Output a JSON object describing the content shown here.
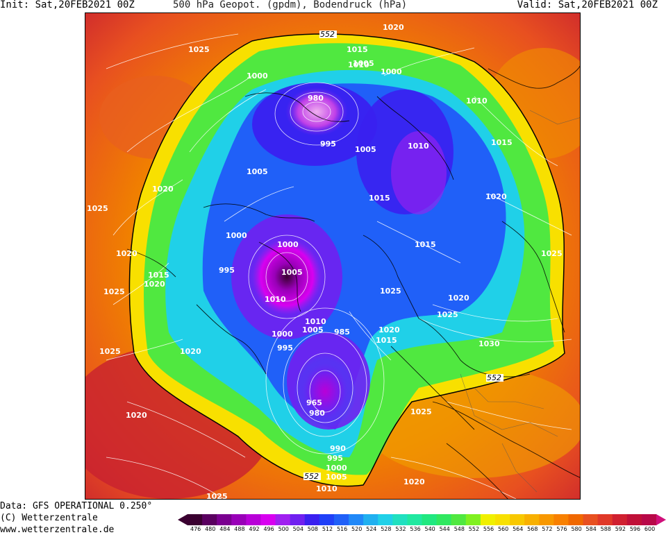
{
  "header": {
    "init": "Init: Sat,20FEB2021 00Z",
    "title": "500 hPa Geopot. (gpdm), Bodendruck (hPa)",
    "valid": "Valid: Sat,20FEB2021 00Z"
  },
  "footer": {
    "data_line": "Data: GFS OPERATIONAL 0.250°",
    "copyright": "(C) Wetterzentrale",
    "url": "www.wetterzentrale.de"
  },
  "colorbar": {
    "labels": [
      "476",
      "480",
      "484",
      "488",
      "492",
      "496",
      "500",
      "504",
      "508",
      "512",
      "516",
      "520",
      "524",
      "528",
      "532",
      "536",
      "540",
      "544",
      "548",
      "552",
      "556",
      "560",
      "564",
      "568",
      "572",
      "576",
      "580",
      "584",
      "588",
      "592",
      "596",
      "600"
    ],
    "colors": [
      "#3a0030",
      "#5a0060",
      "#7a0090",
      "#9900b8",
      "#b800d8",
      "#d800f0",
      "#a020f0",
      "#7020f0",
      "#3a20f0",
      "#2040f8",
      "#2060f8",
      "#2088f8",
      "#20b0f0",
      "#20d0e8",
      "#20e0c0",
      "#20e8a0",
      "#20e880",
      "#30e860",
      "#50e840",
      "#80f020",
      "#f0f000",
      "#f8e000",
      "#f8c800",
      "#f8b000",
      "#f89800",
      "#f88000",
      "#f06800",
      "#e85020",
      "#e03828",
      "#d02030",
      "#c01038",
      "#b80848"
    ],
    "cap_left": "#3a0030",
    "cap_right": "#d0107a"
  },
  "contour_labels": [
    {
      "text": "552"
    },
    {
      "text": "1020"
    },
    {
      "text": "1015"
    },
    {
      "text": "1010"
    },
    {
      "text": "1005"
    },
    {
      "text": "1000"
    },
    {
      "text": "1025"
    },
    {
      "text": "1000"
    },
    {
      "text": "980"
    },
    {
      "text": "1010"
    },
    {
      "text": "995"
    },
    {
      "text": "1005"
    },
    {
      "text": "1010"
    },
    {
      "text": "1015"
    },
    {
      "text": "1005"
    },
    {
      "text": "1020"
    },
    {
      "text": "1015"
    },
    {
      "text": "1025"
    },
    {
      "text": "1020"
    },
    {
      "text": "1025"
    },
    {
      "text": "1000"
    },
    {
      "text": "1000"
    },
    {
      "text": "1015"
    },
    {
      "text": "1020"
    },
    {
      "text": "1020"
    },
    {
      "text": "995"
    },
    {
      "text": "1005"
    },
    {
      "text": "1015"
    },
    {
      "text": "1010"
    },
    {
      "text": "1025"
    },
    {
      "text": "1020"
    },
    {
      "text": "1025"
    },
    {
      "text": "1025"
    },
    {
      "text": "1010"
    },
    {
      "text": "1005"
    },
    {
      "text": "985"
    },
    {
      "text": "1020"
    },
    {
      "text": "1015"
    },
    {
      "text": "1000"
    },
    {
      "text": "1030"
    },
    {
      "text": "995"
    },
    {
      "text": "1025"
    },
    {
      "text": "1020"
    },
    {
      "text": "552"
    },
    {
      "text": "965"
    },
    {
      "text": "980"
    },
    {
      "text": "1025"
    },
    {
      "text": "1020"
    },
    {
      "text": "990"
    },
    {
      "text": "995"
    },
    {
      "text": "1000"
    },
    {
      "text": "552"
    },
    {
      "text": "1005"
    },
    {
      "text": "1010"
    },
    {
      "text": "1020"
    },
    {
      "text": "1025"
    }
  ]
}
